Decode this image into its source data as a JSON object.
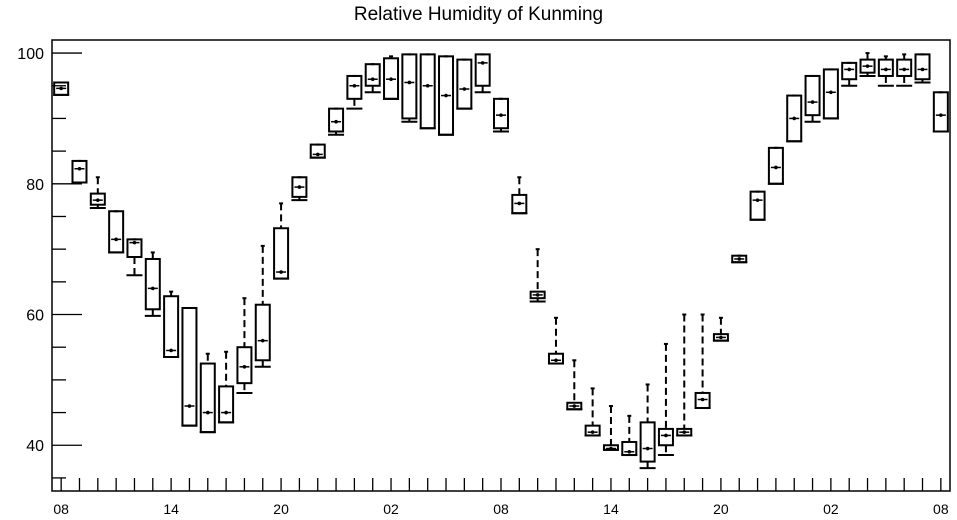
{
  "chart_data": {
    "type": "boxplot",
    "title": "Relative Humidity of Kunming",
    "xlabel": "",
    "ylabel": "",
    "ylim": [
      33,
      102
    ],
    "y_ticks": [
      40,
      60,
      80,
      100
    ],
    "x_tick_labels": [
      "08",
      "14",
      "20",
      "02",
      "08",
      "14",
      "20",
      "02",
      "08"
    ],
    "x_label_hours": [
      0,
      6,
      12,
      18,
      24,
      30,
      36,
      42,
      48
    ],
    "x_range_hours": [
      -0.5,
      48.5
    ],
    "grid": false,
    "legend": "none",
    "series": [
      {
        "hour": 0,
        "low": 93.6,
        "q1": 93.6,
        "median": 94.6,
        "q3": 95.5,
        "high": 95.5
      },
      {
        "hour": 1,
        "low": 80.2,
        "q1": 80.2,
        "median": 82.3,
        "q3": 83.5,
        "high": 83.5
      },
      {
        "hour": 2,
        "low": 76.3,
        "q1": 76.8,
        "median": 77.5,
        "q3": 78.5,
        "high": 81.0
      },
      {
        "hour": 3,
        "low": 69.5,
        "q1": 69.5,
        "median": 71.5,
        "q3": 75.8,
        "high": 75.8
      },
      {
        "hour": 4,
        "low": 66.0,
        "q1": 68.8,
        "median": 71.0,
        "q3": 71.5,
        "high": 71.5
      },
      {
        "hour": 5,
        "low": 59.8,
        "q1": 60.8,
        "median": 64.0,
        "q3": 68.5,
        "high": 69.5
      },
      {
        "hour": 6,
        "low": 53.5,
        "q1": 53.5,
        "median": 54.5,
        "q3": 62.8,
        "high": 63.5
      },
      {
        "hour": 7,
        "low": 43.0,
        "q1": 43.0,
        "median": 46.0,
        "q3": 61.0,
        "high": 61.0
      },
      {
        "hour": 8,
        "low": 42.0,
        "q1": 42.0,
        "median": 45.0,
        "q3": 52.5,
        "high": 54.0
      },
      {
        "hour": 9,
        "low": 43.5,
        "q1": 43.5,
        "median": 45.0,
        "q3": 49.0,
        "high": 54.3
      },
      {
        "hour": 10,
        "low": 48.0,
        "q1": 49.5,
        "median": 52.0,
        "q3": 55.0,
        "high": 62.5
      },
      {
        "hour": 11,
        "low": 52.0,
        "q1": 53.0,
        "median": 56.0,
        "q3": 61.5,
        "high": 70.5
      },
      {
        "hour": 12,
        "low": 65.5,
        "q1": 65.5,
        "median": 66.5,
        "q3": 73.2,
        "high": 77.0
      },
      {
        "hour": 13,
        "low": 77.5,
        "q1": 78.0,
        "median": 79.5,
        "q3": 81.0,
        "high": 81.0
      },
      {
        "hour": 14,
        "low": 84.0,
        "q1": 84.0,
        "median": 84.5,
        "q3": 86.0,
        "high": 86.0
      },
      {
        "hour": 15,
        "low": 87.5,
        "q1": 88.0,
        "median": 89.5,
        "q3": 91.5,
        "high": 91.5
      },
      {
        "hour": 16,
        "low": 91.5,
        "q1": 93.0,
        "median": 95.0,
        "q3": 96.5,
        "high": 96.5
      },
      {
        "hour": 17,
        "low": 94.0,
        "q1": 95.0,
        "median": 96.0,
        "q3": 98.3,
        "high": 98.3
      },
      {
        "hour": 18,
        "low": 93.0,
        "q1": 93.0,
        "median": 96.0,
        "q3": 99.2,
        "high": 99.5
      },
      {
        "hour": 19,
        "low": 89.5,
        "q1": 90.0,
        "median": 95.5,
        "q3": 99.8,
        "high": 99.8
      },
      {
        "hour": 20,
        "low": 88.5,
        "q1": 88.5,
        "median": 95.0,
        "q3": 99.8,
        "high": 99.8
      },
      {
        "hour": 21,
        "low": 87.5,
        "q1": 87.5,
        "median": 93.5,
        "q3": 99.5,
        "high": 99.5
      },
      {
        "hour": 22,
        "low": 91.5,
        "q1": 91.5,
        "median": 94.5,
        "q3": 99.0,
        "high": 99.0
      },
      {
        "hour": 23,
        "low": 94.0,
        "q1": 95.0,
        "median": 98.5,
        "q3": 99.8,
        "high": 99.8
      },
      {
        "hour": 24,
        "low": 88.0,
        "q1": 88.5,
        "median": 90.5,
        "q3": 93.0,
        "high": 93.0
      },
      {
        "hour": 25,
        "low": 75.5,
        "q1": 75.5,
        "median": 77.0,
        "q3": 78.3,
        "high": 81.0
      },
      {
        "hour": 26,
        "low": 62.0,
        "q1": 62.5,
        "median": 63.0,
        "q3": 63.5,
        "high": 70.0
      },
      {
        "hour": 27,
        "low": 52.5,
        "q1": 52.5,
        "median": 53.0,
        "q3": 54.0,
        "high": 59.5
      },
      {
        "hour": 28,
        "low": 45.5,
        "q1": 45.5,
        "median": 46.0,
        "q3": 46.5,
        "high": 53.0
      },
      {
        "hour": 29,
        "low": 41.5,
        "q1": 41.5,
        "median": 42.0,
        "q3": 43.0,
        "high": 48.7
      },
      {
        "hour": 30,
        "low": 39.3,
        "q1": 39.3,
        "median": 39.5,
        "q3": 40.0,
        "high": 46.0
      },
      {
        "hour": 31,
        "low": 38.5,
        "q1": 38.5,
        "median": 39.0,
        "q3": 40.5,
        "high": 44.5
      },
      {
        "hour": 32,
        "low": 36.5,
        "q1": 37.5,
        "median": 39.5,
        "q3": 43.5,
        "high": 49.3
      },
      {
        "hour": 33,
        "low": 38.5,
        "q1": 40.0,
        "median": 41.5,
        "q3": 42.5,
        "high": 55.5
      },
      {
        "hour": 34,
        "low": 41.5,
        "q1": 41.5,
        "median": 42.0,
        "q3": 42.5,
        "high": 60.0
      },
      {
        "hour": 35,
        "low": 45.7,
        "q1": 45.7,
        "median": 47.0,
        "q3": 48.0,
        "high": 60.0
      },
      {
        "hour": 36,
        "low": 56.0,
        "q1": 56.0,
        "median": 56.5,
        "q3": 57.0,
        "high": 59.5
      },
      {
        "hour": 37,
        "low": 68.0,
        "q1": 68.0,
        "median": 68.5,
        "q3": 69.0,
        "high": 69.0
      },
      {
        "hour": 38,
        "low": 74.5,
        "q1": 74.5,
        "median": 77.5,
        "q3": 78.8,
        "high": 78.8
      },
      {
        "hour": 39,
        "low": 80.0,
        "q1": 80.0,
        "median": 82.5,
        "q3": 85.5,
        "high": 85.5
      },
      {
        "hour": 40,
        "low": 86.5,
        "q1": 86.5,
        "median": 90.0,
        "q3": 93.5,
        "high": 93.5
      },
      {
        "hour": 41,
        "low": 89.5,
        "q1": 90.5,
        "median": 92.5,
        "q3": 96.5,
        "high": 96.5
      },
      {
        "hour": 42,
        "low": 90.0,
        "q1": 90.0,
        "median": 94.0,
        "q3": 97.5,
        "high": 97.5
      },
      {
        "hour": 43,
        "low": 95.0,
        "q1": 96.0,
        "median": 97.5,
        "q3": 98.5,
        "high": 98.5
      },
      {
        "hour": 44,
        "low": 96.5,
        "q1": 97.0,
        "median": 98.0,
        "q3": 99.0,
        "high": 100.0
      },
      {
        "hour": 45,
        "low": 95.0,
        "q1": 96.5,
        "median": 97.5,
        "q3": 99.0,
        "high": 99.5
      },
      {
        "hour": 46,
        "low": 95.0,
        "q1": 96.5,
        "median": 97.5,
        "q3": 99.0,
        "high": 99.8
      },
      {
        "hour": 47,
        "low": 95.5,
        "q1": 96.0,
        "median": 97.5,
        "q3": 99.8,
        "high": 99.8
      },
      {
        "hour": 48,
        "low": 88.0,
        "q1": 88.0,
        "median": 90.5,
        "q3": 94.0,
        "high": 94.0
      }
    ]
  }
}
